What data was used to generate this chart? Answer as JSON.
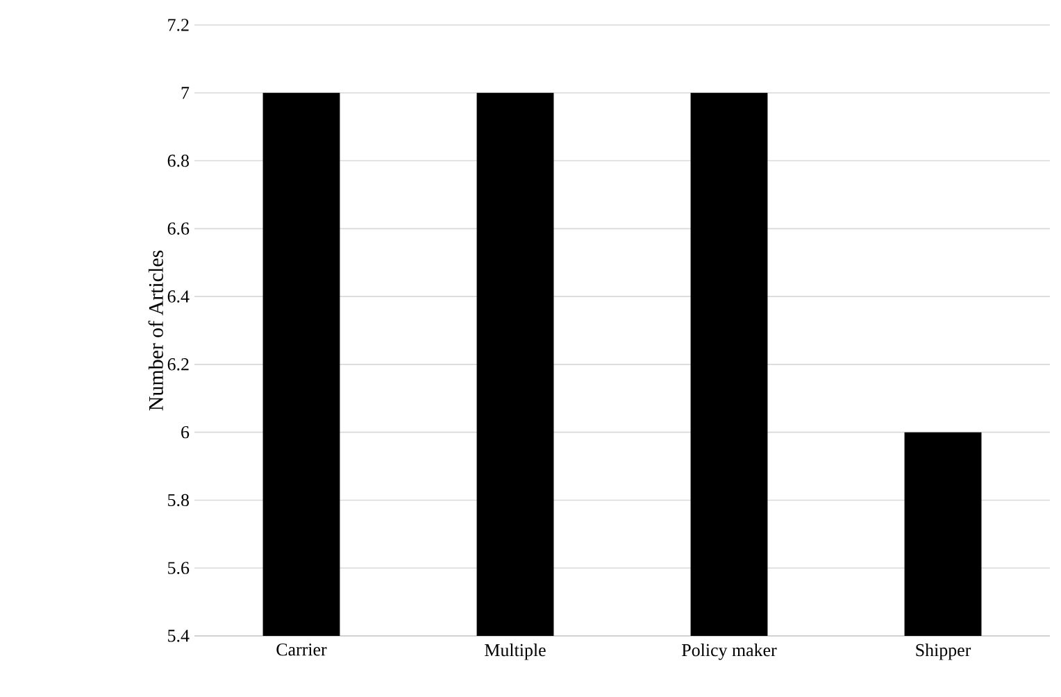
{
  "chart_data": {
    "type": "bar",
    "ylabel": "Number of Articles",
    "categories": [
      "Carrier",
      "Multiple",
      "Policy maker",
      "Shipper"
    ],
    "values": [
      7,
      7,
      7,
      6
    ],
    "color": "#000000",
    "ylim": [
      5.4,
      7.2
    ],
    "yticks": [
      5.4,
      5.6,
      5.8,
      6,
      6.2,
      6.4,
      6.6,
      6.8,
      7,
      7.2
    ],
    "grid": "y"
  }
}
